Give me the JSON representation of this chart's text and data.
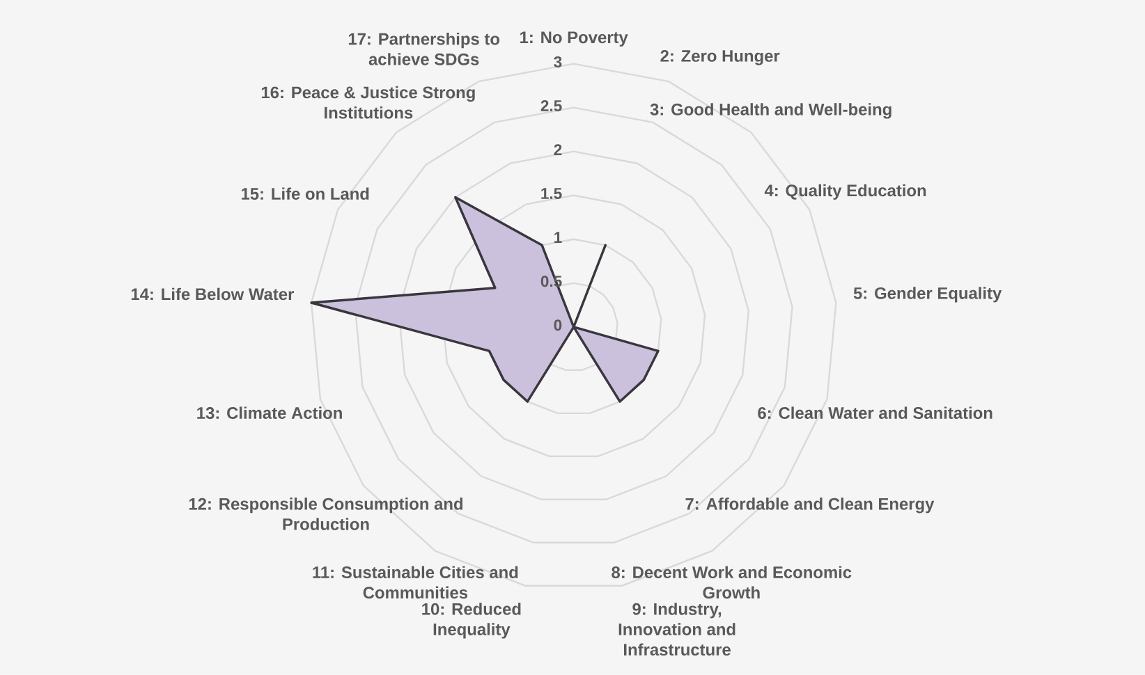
{
  "chart_data": {
    "type": "radar",
    "categories": [
      "1: No Poverty",
      "2: Zero Hunger",
      "3: Good Health and Well-being",
      "4: Quality Education",
      "5: Gender Equality",
      "6: Clean Water and Sanitation",
      "7: Affordable and Clean Energy",
      "8: Decent Work and Economic Growth",
      "9: Industry, Innovation and Infrastructure",
      "10: Reduced Inequality",
      "11: Sustainable Cities and Communities",
      "12: Responsible Consumption and Production",
      "13: Climate Action",
      "14: Life Below Water",
      "15: Life on Land",
      "16: Peace & Justice Strong Institutions",
      "17: Partnerships to achieve SDGs"
    ],
    "series": [
      {
        "color": "#ccc1dd",
        "values": [
          0,
          1,
          0,
          0,
          0,
          1,
          1,
          1,
          0,
          0,
          1,
          1,
          1,
          3,
          1,
          2,
          1
        ]
      }
    ],
    "ylim": [
      0,
      3
    ],
    "yticks": [
      0,
      0.5,
      1,
      1.5,
      2,
      2.5,
      3
    ],
    "grid": true
  }
}
